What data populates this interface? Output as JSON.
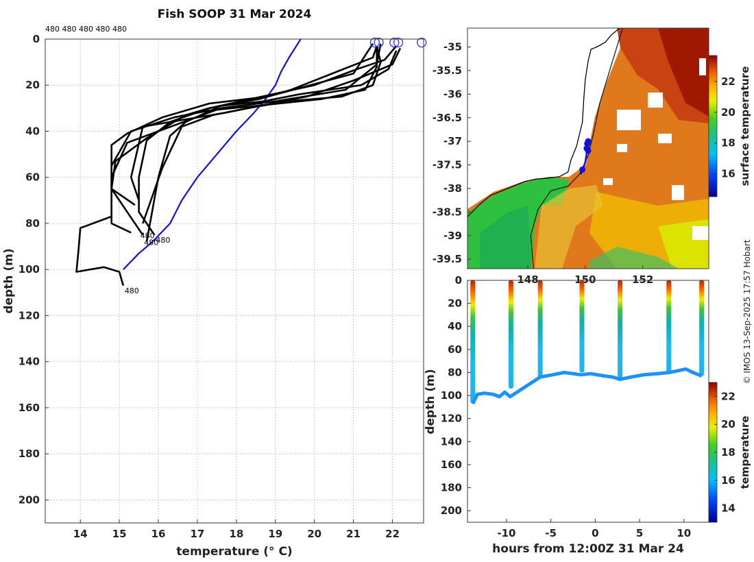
{
  "title": "Fish SOOP 31 Mar 2024",
  "credit": "© IMOS 13-Sep-2025 17:57 Hobart",
  "chart_data": [
    {
      "id": "profiles",
      "type": "line",
      "xlabel": "temperature (° C)",
      "ylabel": "depth (m)",
      "xlim": [
        13.1,
        22.8
      ],
      "ylim": [
        210,
        0
      ],
      "xticks": [
        14,
        15,
        16,
        17,
        18,
        19,
        20,
        21,
        22
      ],
      "yticks": [
        0,
        20,
        40,
        60,
        80,
        100,
        120,
        140,
        160,
        180,
        200
      ],
      "top_labels": "480 480 480 480 480",
      "series": [
        {
          "name": "climatology",
          "color": "#1010e0",
          "x": [
            19.65,
            19.35,
            19.15,
            19.0,
            18.75,
            18.45,
            18.0,
            17.5,
            17.0,
            16.6,
            16.3,
            15.85,
            15.5,
            15.1
          ],
          "y": [
            0,
            8,
            14,
            20,
            26,
            32,
            40,
            50,
            60,
            70,
            80,
            88,
            93,
            100
          ]
        },
        {
          "name": "profile-1",
          "color": "#000000",
          "x": [
            21.6,
            21.7,
            21.5,
            20.7,
            19.3,
            18.3,
            17.7,
            16.3,
            15.7,
            15.5,
            15.5,
            15.9
          ],
          "y": [
            3,
            10,
            20,
            25,
            27,
            30,
            32,
            36,
            44,
            60,
            75,
            85
          ]
        },
        {
          "name": "profile-2",
          "color": "#000000",
          "x": [
            21.6,
            21.6,
            21.3,
            20.2,
            18.5,
            17.3,
            16.4,
            15.3,
            14.8,
            14.8,
            15.4
          ],
          "y": [
            3,
            12,
            22,
            26,
            29,
            31,
            34,
            40,
            55,
            65,
            72
          ]
        },
        {
          "name": "profile-3",
          "color": "#000000",
          "x": [
            22.1,
            21.9,
            21.2,
            19.6,
            18.7,
            17.6,
            16.7,
            16.3,
            16.0,
            15.7
          ],
          "y": [
            5,
            13,
            20,
            24,
            27,
            29,
            36,
            42,
            60,
            88
          ]
        },
        {
          "name": "profile-4",
          "color": "#000000",
          "x": [
            22.2,
            22.0,
            21.0,
            19.8,
            18.9,
            17.4,
            16.6,
            16.1,
            15.6
          ],
          "y": [
            4,
            11,
            18,
            25,
            28,
            33,
            38,
            56,
            80
          ]
        },
        {
          "name": "profile-5",
          "color": "#000000",
          "x": [
            21.7,
            21.6,
            20.8,
            19.0,
            17.6,
            16.8,
            16.0,
            15.2,
            14.8,
            14.8,
            15.3
          ],
          "y": [
            2,
            11,
            22,
            27,
            30,
            35,
            40,
            45,
            60,
            80,
            84
          ]
        },
        {
          "name": "profile-6",
          "color": "#000000",
          "x": [
            22.1,
            21.8,
            21.1,
            20.0,
            17.3,
            16.3,
            15.6,
            15.3,
            15.5
          ],
          "y": [
            3,
            9,
            13,
            20,
            30,
            36,
            38,
            60,
            70
          ]
        },
        {
          "name": "profile-7",
          "color": "#000000",
          "x": [
            21.6,
            21.5,
            19.4,
            18.6,
            17.3,
            16.7,
            15.7,
            14.9,
            14.8,
            15.6
          ],
          "y": [
            3,
            8,
            22,
            26,
            30,
            33,
            43,
            53,
            65,
            85
          ]
        },
        {
          "name": "profile-8",
          "color": "#000000",
          "x": [
            21.5,
            21.0,
            18.8,
            17.3,
            16.1,
            15.2,
            14.8,
            14.8,
            14.0,
            13.95,
            13.9,
            14.6,
            15.0,
            15.1
          ],
          "y": [
            2,
            15,
            25,
            28,
            34,
            41,
            46,
            77,
            82,
            92,
            101,
            99,
            101,
            107
          ]
        }
      ],
      "markers": {
        "name": "profile-start-circles",
        "x": [
          21.55,
          21.65,
          22.05,
          22.15,
          22.75
        ],
        "y": [
          1.5,
          1.5,
          1.5,
          1.5,
          1.5
        ]
      },
      "end_labels": [
        {
          "text": "480",
          "x": 15.1,
          "y": 108
        },
        {
          "text": "480",
          "x": 15.5,
          "y": 84
        },
        {
          "text": "480",
          "x": 15.9,
          "y": 86
        },
        {
          "text": "480",
          "x": 15.6,
          "y": 87
        }
      ]
    },
    {
      "id": "map",
      "type": "heatmap",
      "xlabel": "",
      "ylabel": "",
      "xlim": [
        145.9,
        154.3
      ],
      "ylim": [
        -39.7,
        -34.6
      ],
      "yticks": [
        -35,
        -35.5,
        -36,
        -36.5,
        -37,
        -37.5,
        -38,
        -38.5,
        -39,
        -39.5
      ],
      "xticks": [
        148,
        150,
        152
      ],
      "xtick_labels": [
        "148",
        "150",
        "152"
      ],
      "colorbar": {
        "label": "surface temperature",
        "range": [
          14.5,
          23.7
        ],
        "ticks": [
          16,
          18,
          20,
          22
        ]
      },
      "coastline": {
        "lon": [
          145.9,
          146.3,
          146.7,
          147.1,
          147.5,
          147.9,
          148.3,
          148.7,
          149.1,
          149.4,
          149.5,
          149.7,
          149.9,
          149.95,
          150.0,
          150.1,
          150.2,
          150.4,
          150.7,
          150.9,
          151.2
        ],
        "lat": [
          -38.6,
          -38.35,
          -38.15,
          -38.05,
          -37.95,
          -37.85,
          -37.8,
          -37.78,
          -37.75,
          -37.65,
          -37.4,
          -37.1,
          -36.6,
          -36.1,
          -35.7,
          -35.3,
          -35.05,
          -35.0,
          -34.9,
          -34.75,
          -34.6
        ]
      },
      "shelf_edge": {
        "lon": [
          148.2,
          148.1,
          148.35,
          148.8,
          149.4,
          149.8,
          150.1,
          150.3,
          150.5,
          150.8,
          151.0,
          151.3
        ],
        "lat": [
          -39.7,
          -39.0,
          -38.45,
          -38.05,
          -37.95,
          -37.7,
          -37.3,
          -36.8,
          -36.2,
          -35.6,
          -35.2,
          -34.6
        ]
      },
      "track": {
        "lon": [
          149.85,
          149.9,
          150.0,
          150.05,
          150.1,
          150.1,
          150.05
        ],
        "lat": [
          -37.7,
          -37.6,
          -37.45,
          -37.25,
          -37.1,
          -37.0,
          -37.15
        ]
      },
      "profile_positions": {
        "lon": [
          149.9,
          150.05,
          150.07,
          150.1,
          150.1
        ],
        "lat": [
          -37.6,
          -37.15,
          -37.05,
          -37.0,
          -37.2
        ]
      }
    },
    {
      "id": "time-depth",
      "type": "scatter",
      "xlabel": "hours from 12:00Z 31 Mar 24",
      "ylabel": "depth (m)",
      "xlim": [
        -14.4,
        12.8
      ],
      "ylim": [
        210,
        0
      ],
      "xticks": [
        -10,
        -5,
        0,
        5,
        10
      ],
      "yticks": [
        0,
        20,
        40,
        60,
        80,
        100,
        120,
        140,
        160,
        180,
        200
      ],
      "colorbar": {
        "label": "temperature",
        "range": [
          13,
          23
        ],
        "ticks": [
          14,
          16,
          18,
          20,
          22
        ]
      },
      "casts": [
        {
          "x": -13.8,
          "max_depth": 107
        },
        {
          "x": -9.5,
          "max_depth": 94
        },
        {
          "x": -6.2,
          "max_depth": 85
        },
        {
          "x": -1.5,
          "max_depth": 80
        },
        {
          "x": 2.8,
          "max_depth": 86
        },
        {
          "x": 8.3,
          "max_depth": 80
        },
        {
          "x": 12.0,
          "max_depth": 83
        }
      ],
      "bottom_trace": {
        "x": [
          -13.8,
          -13.3,
          -12.5,
          -11.5,
          -10.8,
          -10.2,
          -9.6,
          -6.2,
          -4.8,
          -3.5,
          -2.5,
          -1.6,
          -0.5,
          1.0,
          2.0,
          2.8,
          4.0,
          5.5,
          7.0,
          8.3,
          9.0,
          10.2,
          11.0,
          12.0
        ],
        "y": [
          107,
          99,
          98,
          99,
          101,
          97,
          101,
          84,
          82,
          80,
          81,
          82,
          81,
          83,
          84,
          86,
          84,
          82,
          81,
          80,
          79,
          77,
          80,
          83
        ]
      }
    }
  ]
}
